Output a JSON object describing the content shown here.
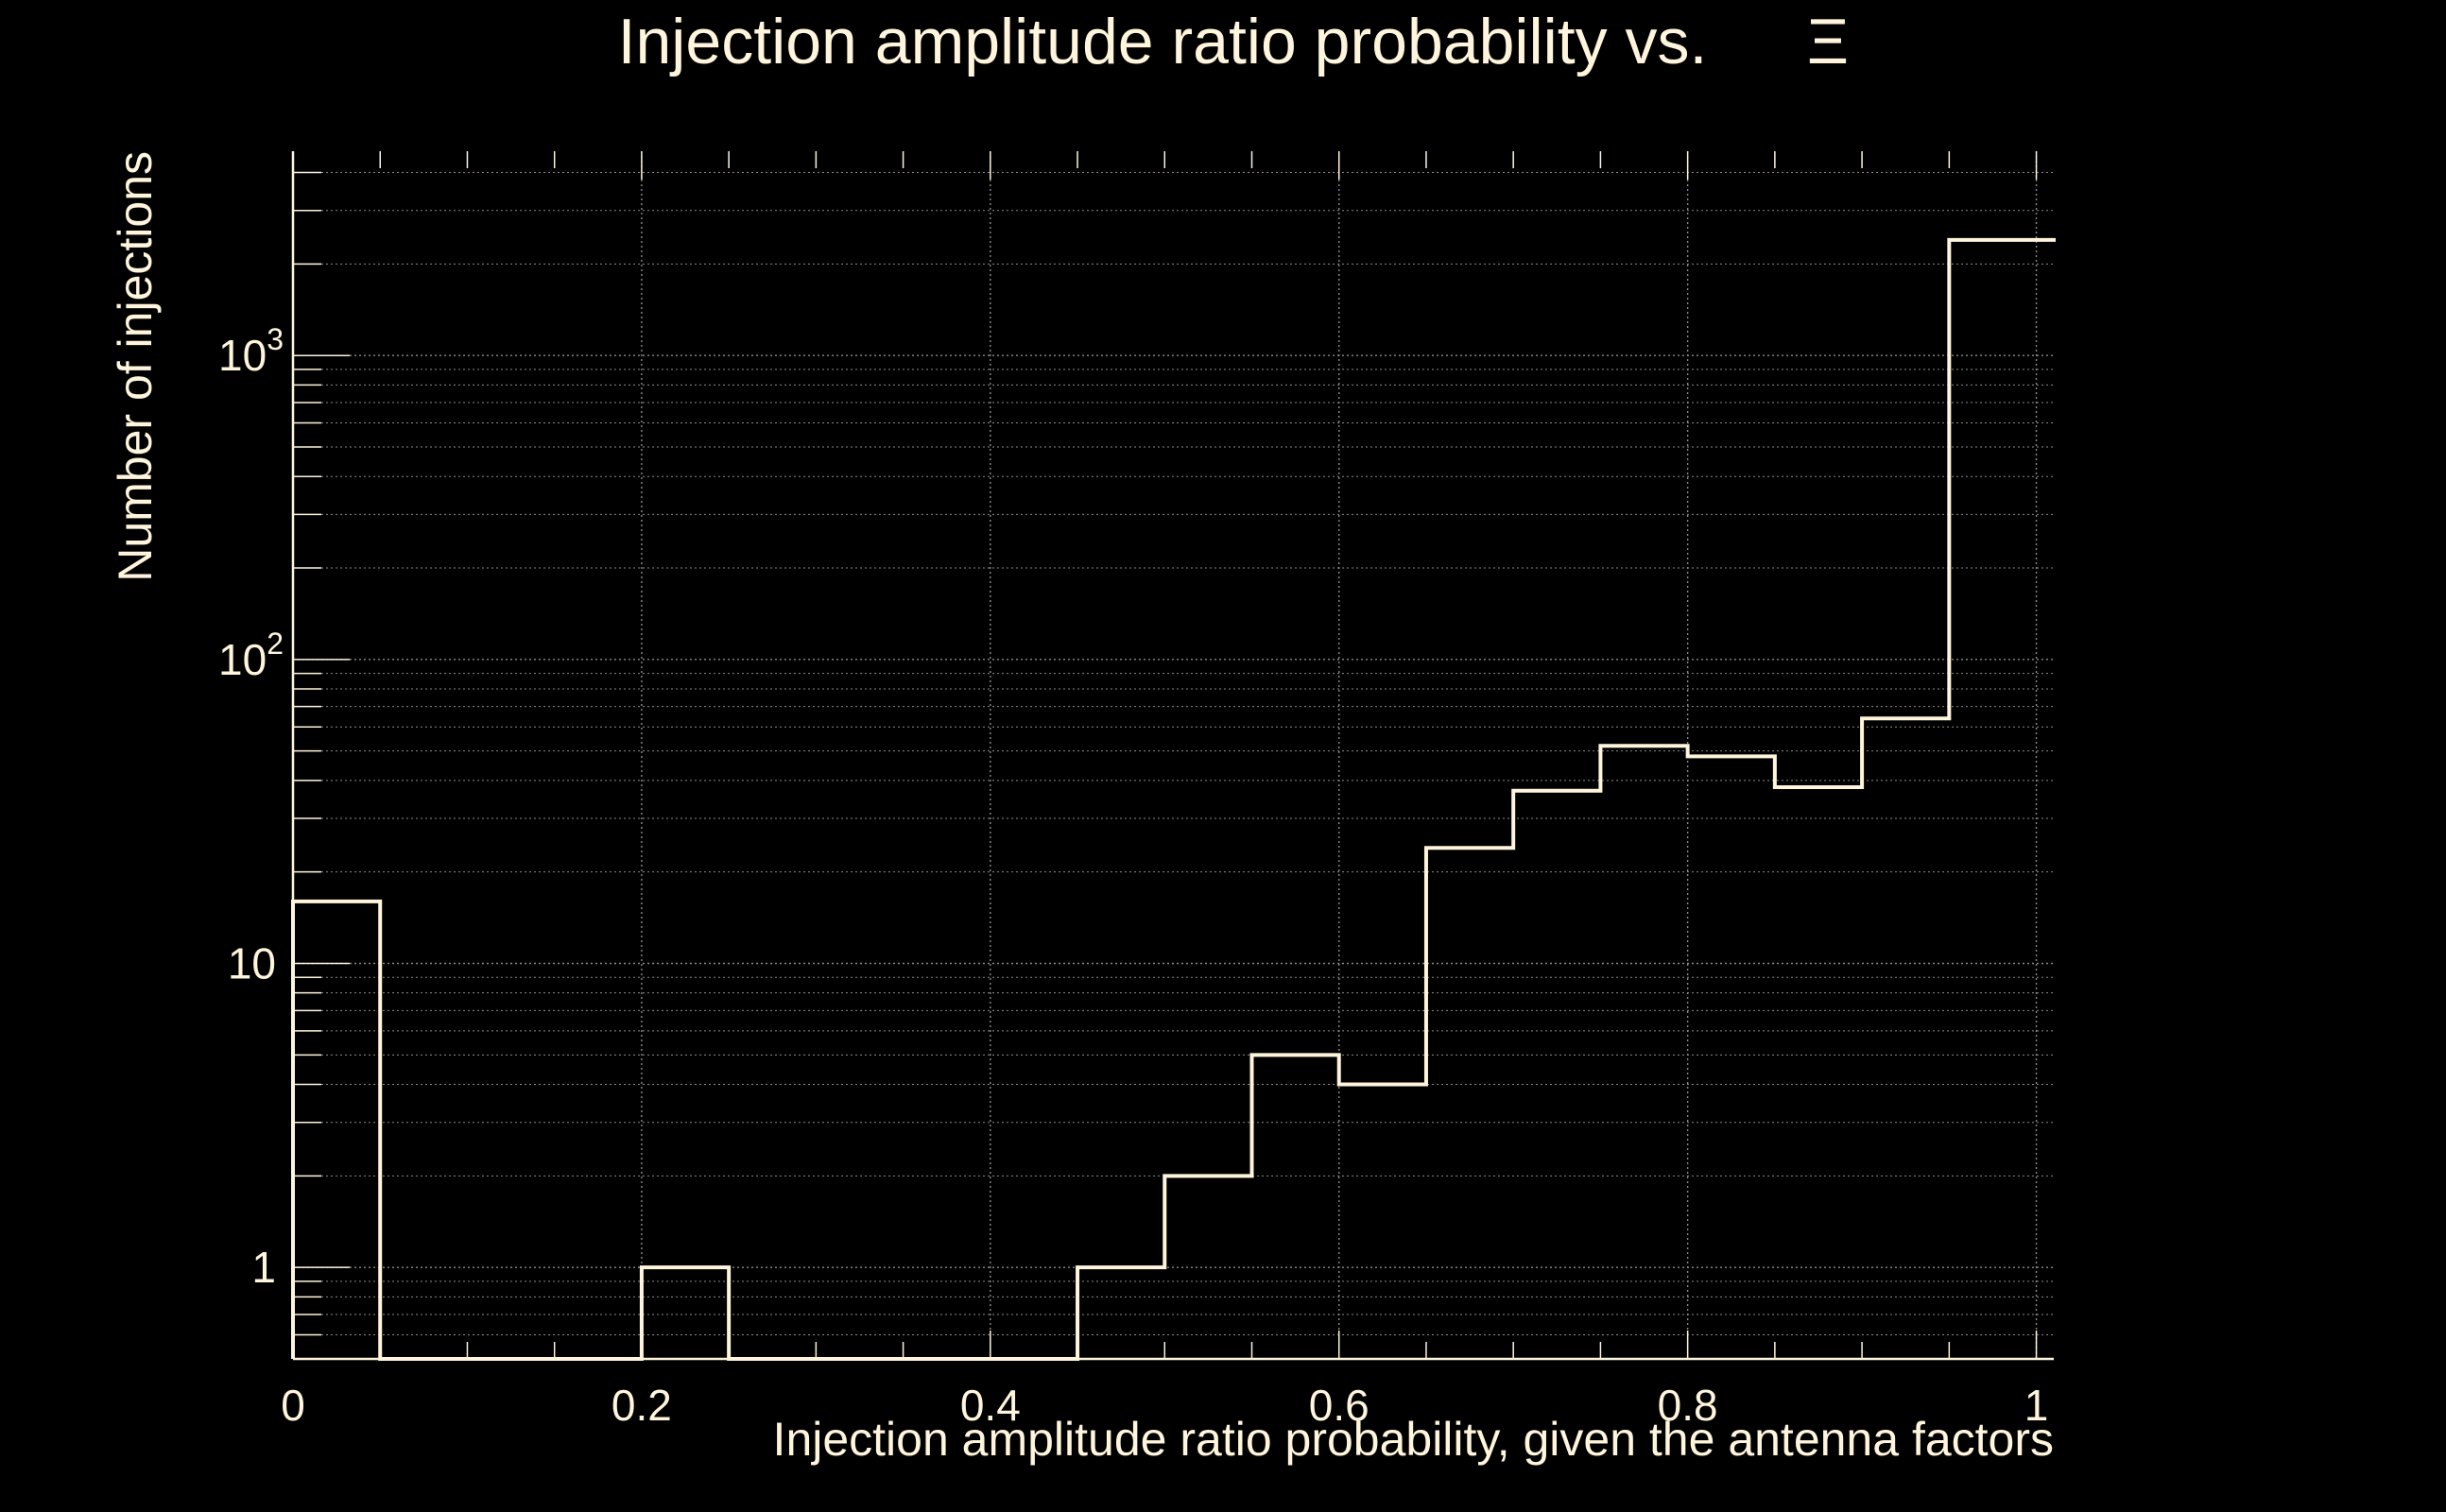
{
  "chart_data": {
    "type": "bar",
    "title": "Injection amplitude ratio probability vs.",
    "title_symbol": "Ξ",
    "xlabel": "Injection amplitude ratio probability, given the antenna factors",
    "ylabel": "Number of injections",
    "x_scale": "linear",
    "y_scale": "log",
    "xlim": [
      0,
      1.01
    ],
    "ylim": [
      0.5,
      4700
    ],
    "grid": true,
    "legend": "none",
    "x_tick_labels": [
      "0",
      "0.2",
      "0.4",
      "0.6",
      "0.8",
      "1"
    ],
    "x_tick_values": [
      0,
      0.2,
      0.4,
      0.6,
      0.8,
      1.0
    ],
    "y_tick_labels": [
      {
        "base": "1",
        "exp": ""
      },
      {
        "base": "10",
        "exp": ""
      },
      {
        "base": "10",
        "exp": "2"
      },
      {
        "base": "10",
        "exp": "3"
      }
    ],
    "y_tick_values": [
      1,
      10,
      100,
      1000
    ],
    "bin_edges": [
      0.0,
      0.05,
      0.1,
      0.15,
      0.2,
      0.25,
      0.3,
      0.35,
      0.4,
      0.45,
      0.5,
      0.55,
      0.6,
      0.65,
      0.7,
      0.75,
      0.8,
      0.85,
      0.9,
      0.95,
      1.0
    ],
    "values": [
      16,
      0,
      0,
      0,
      1,
      0,
      0,
      0,
      0,
      1,
      2,
      5,
      4,
      24,
      37,
      52,
      48,
      38,
      64,
      2400
    ],
    "colors": {
      "background": "#000000",
      "foreground": "#fff5dc",
      "grid": "#8a8a8a"
    }
  }
}
